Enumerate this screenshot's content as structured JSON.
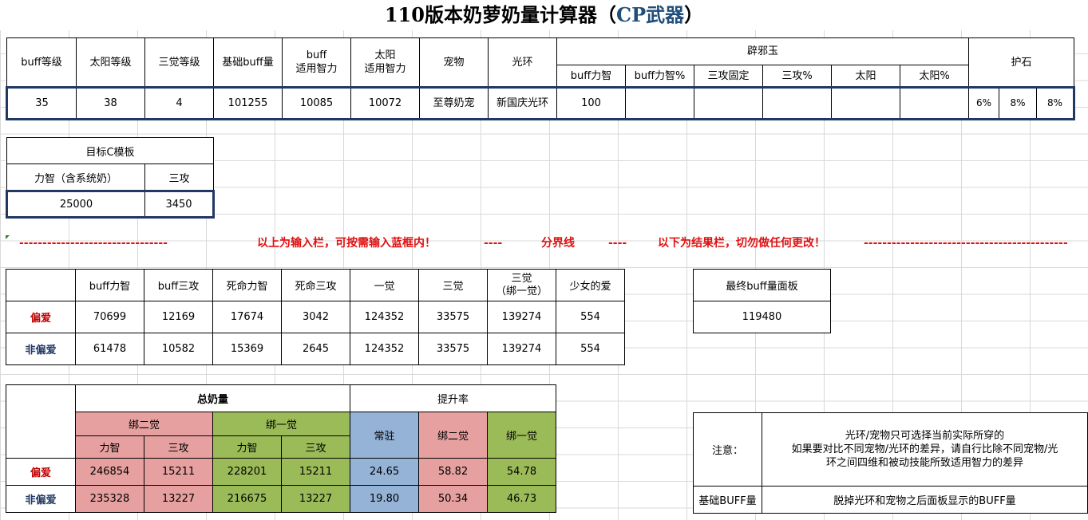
{
  "title": {
    "main": "110版本奶萝奶量计算器（",
    "accent": "CP武器",
    "end": "）"
  },
  "input": {
    "headers": [
      "buff等级",
      "太阳等级",
      "三觉等级",
      "基础buff量",
      "buff\n适用智力",
      "太阳\n适用智力",
      "宠物",
      "光环"
    ],
    "pixie_title": "辟邪玉",
    "pixie_headers": [
      "buff力智",
      "buff力智%",
      "三攻固定",
      "三攻%",
      "太阳",
      "太阳%"
    ],
    "stone_title": "护石",
    "values": [
      "35",
      "38",
      "4",
      "101255",
      "10085",
      "10072",
      "至尊奶宠",
      "新国庆光环"
    ],
    "pixie_values": [
      "100",
      "",
      "",
      "",
      "",
      ""
    ],
    "stone_values": [
      "6%",
      "8%",
      "8%"
    ]
  },
  "target": {
    "title": "目标C模板",
    "headers": [
      "力智（含系统奶）",
      "三攻"
    ],
    "values": [
      "25000",
      "3450"
    ]
  },
  "divider": {
    "dashes_left": "--------------------------------",
    "text1": "以上为输入栏，可按需输入蓝框内！",
    "sep1": "----",
    "text2": "分界线",
    "sep2": "----",
    "text3": "以下为结果栏，切勿做任何更改！",
    "dashes_right": "--------------------------------------------"
  },
  "result": {
    "headers": [
      "buff力智",
      "buff三攻",
      "死命力智",
      "死命三攻",
      "一觉",
      "三觉",
      "三觉\n（绑一觉）",
      "少女的爱"
    ],
    "rows": [
      {
        "label": "偏爱",
        "values": [
          "70699",
          "12169",
          "17674",
          "3042",
          "124352",
          "33575",
          "139274",
          "554"
        ]
      },
      {
        "label": "非偏爱",
        "values": [
          "61478",
          "10582",
          "15369",
          "2645",
          "124352",
          "33575",
          "139274",
          "554"
        ]
      }
    ]
  },
  "final": {
    "header": "最终buff量面板",
    "value": "119480"
  },
  "total": {
    "title": "总奶量",
    "rise_title": "提升率",
    "bind2": "绑二觉",
    "bind1": "绑一觉",
    "sub": [
      "力智",
      "三攻",
      "力智",
      "三攻"
    ],
    "rise_headers": [
      "常驻",
      "绑二觉",
      "绑一觉"
    ],
    "rows": [
      {
        "label": "偏爱",
        "values": [
          "246854",
          "15211",
          "228201",
          "15211"
        ],
        "rise": [
          "24.65",
          "58.82",
          "54.78"
        ]
      },
      {
        "label": "非偏爱",
        "values": [
          "235328",
          "13227",
          "216675",
          "13227"
        ],
        "rise": [
          "19.80",
          "50.34",
          "46.73"
        ]
      }
    ]
  },
  "notes": {
    "note_label": "注意：",
    "note_text": "光环/宠物只可选择当前实际所穿的\n如果要对比不同宠物/光环的差异，请自行比除不同宠物/光\n环之间四维和被动技能所致适用智力的差异",
    "base_label": "基础BUFF量",
    "base_text": "脱掉光环和宠物之后面板显示的BUFF量"
  }
}
